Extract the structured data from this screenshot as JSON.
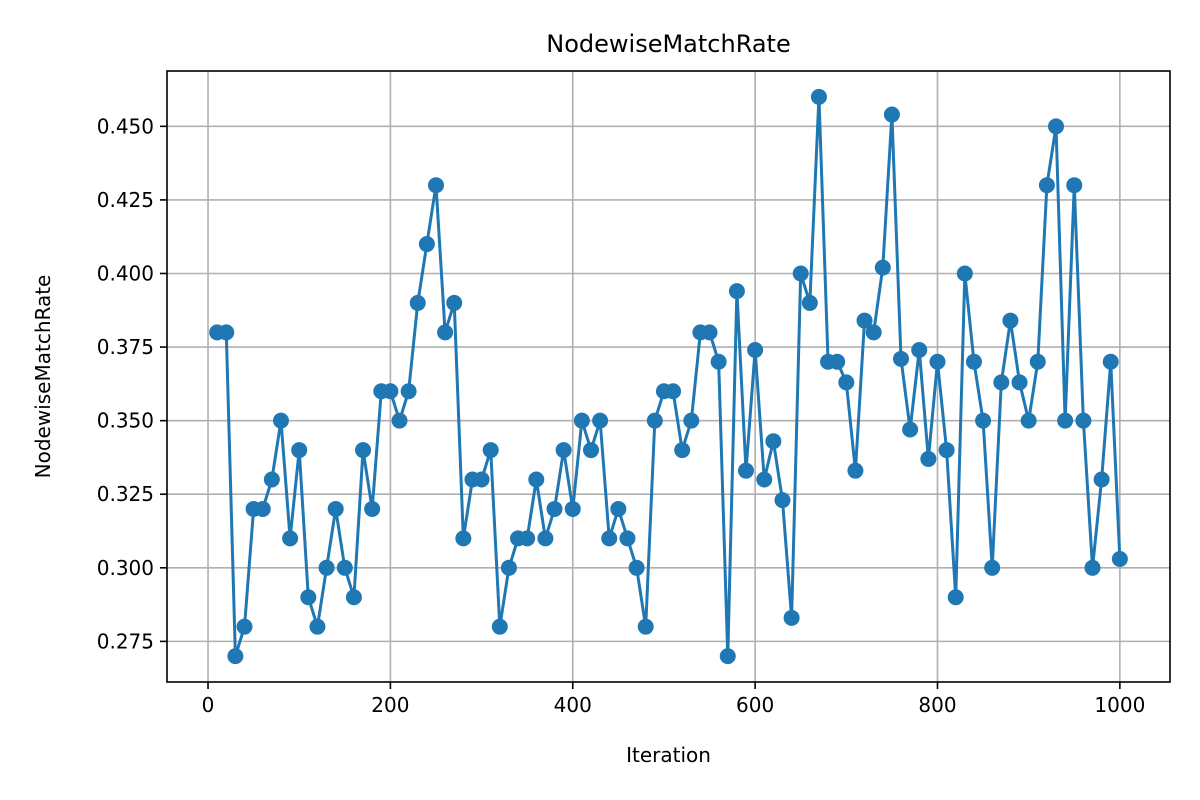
{
  "chart_data": {
    "type": "line",
    "title": "NodewiseMatchRate",
    "xlabel": "Iteration",
    "ylabel": "NodewiseMatchRate",
    "xlim": [
      -45,
      1055
    ],
    "ylim": [
      0.2612,
      0.4688
    ],
    "xticks": [
      0,
      200,
      400,
      600,
      800,
      1000
    ],
    "yticks": [
      0.275,
      0.3,
      0.325,
      0.35,
      0.375,
      0.4,
      0.425,
      0.45
    ],
    "xtick_labels": [
      "0",
      "200",
      "400",
      "600",
      "800",
      "1000"
    ],
    "ytick_labels": [
      "0.275",
      "0.300",
      "0.325",
      "0.350",
      "0.375",
      "0.400",
      "0.425",
      "0.450"
    ],
    "grid": true,
    "marker": "circle",
    "color": "#1f77b4",
    "series": [
      {
        "x": [
          10,
          20,
          30,
          40,
          50,
          60,
          70,
          80,
          90,
          100,
          110,
          120,
          130,
          140,
          150,
          160,
          170,
          180,
          190,
          200,
          210,
          220,
          230,
          240,
          250,
          260,
          270,
          280,
          290,
          300,
          310,
          320,
          330,
          340,
          350,
          360,
          370,
          380,
          390,
          400,
          410,
          420,
          430,
          440,
          450,
          460,
          470,
          480,
          490,
          500,
          510,
          520,
          530,
          540,
          550,
          560,
          570,
          580,
          590,
          600,
          610,
          620,
          630,
          640,
          650,
          660,
          670,
          680,
          690,
          700,
          710,
          720,
          730,
          740,
          750,
          760,
          770,
          780,
          790,
          800,
          810,
          820,
          830,
          840,
          850,
          860,
          870,
          880,
          890,
          900,
          910,
          920,
          930,
          940,
          950,
          960,
          970,
          980,
          990,
          1000
        ],
        "y": [
          0.38,
          0.38,
          0.27,
          0.28,
          0.32,
          0.32,
          0.33,
          0.35,
          0.31,
          0.34,
          0.29,
          0.28,
          0.3,
          0.32,
          0.3,
          0.29,
          0.34,
          0.32,
          0.36,
          0.36,
          0.35,
          0.36,
          0.39,
          0.41,
          0.43,
          0.38,
          0.39,
          0.31,
          0.33,
          0.33,
          0.34,
          0.28,
          0.3,
          0.31,
          0.31,
          0.33,
          0.31,
          0.32,
          0.34,
          0.32,
          0.35,
          0.34,
          0.35,
          0.31,
          0.32,
          0.31,
          0.3,
          0.28,
          0.35,
          0.36,
          0.36,
          0.34,
          0.35,
          0.38,
          0.38,
          0.37,
          0.27,
          0.394,
          0.333,
          0.374,
          0.33,
          0.343,
          0.323,
          0.283,
          0.4,
          0.39,
          0.46,
          0.37,
          0.37,
          0.363,
          0.333,
          0.384,
          0.38,
          0.402,
          0.454,
          0.371,
          0.347,
          0.374,
          0.337,
          0.37,
          0.34,
          0.29,
          0.4,
          0.37,
          0.35,
          0.3,
          0.363,
          0.384,
          0.363,
          0.35,
          0.37,
          0.43,
          0.45,
          0.35,
          0.43,
          0.35,
          0.3,
          0.33,
          0.37,
          0.303
        ]
      }
    ]
  }
}
